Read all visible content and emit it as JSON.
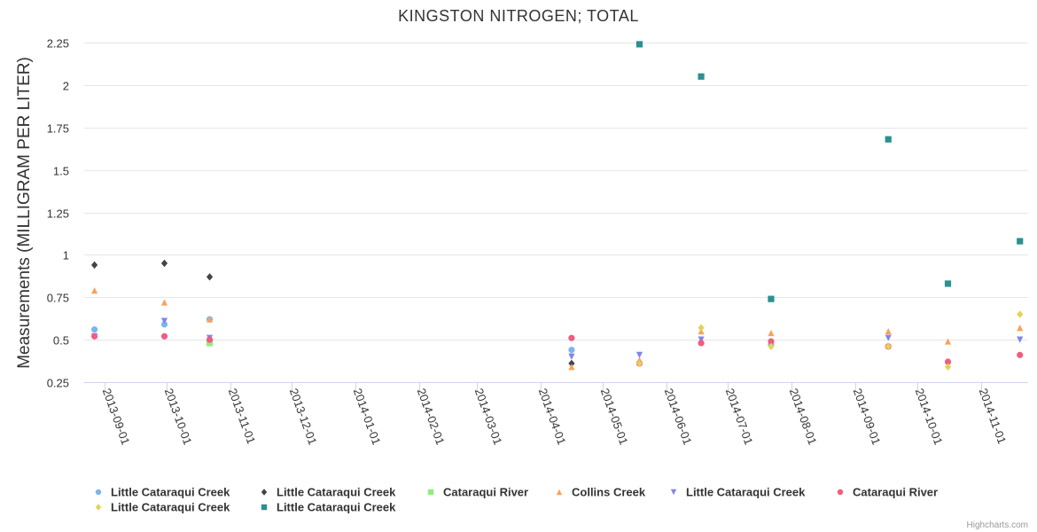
{
  "chart_data": {
    "type": "scatter",
    "title": "KINGSTON NITROGEN; TOTAL",
    "ylabel": "Measurements (MILLIGRAM PER LITER)",
    "xlabel": "",
    "ylim": [
      0.25,
      2.25
    ],
    "y_ticks": [
      "0.25",
      "0.5",
      "0.75",
      "1",
      "1.25",
      "1.5",
      "1.75",
      "2",
      "2.25"
    ],
    "y_tick_values": [
      0.25,
      0.5,
      0.75,
      1,
      1.25,
      1.5,
      1.75,
      2,
      2.25
    ],
    "x_range": [
      "2013-08-22",
      "2014-11-24"
    ],
    "x_ticks": [
      "2013-09-01",
      "2013-10-01",
      "2013-11-01",
      "2013-12-01",
      "2014-01-01",
      "2014-02-01",
      "2014-03-01",
      "2014-04-01",
      "2014-05-01",
      "2014-06-01",
      "2014-07-01",
      "2014-08-01",
      "2014-09-01",
      "2014-10-01",
      "2014-11-01"
    ],
    "grid": true,
    "legend_position": "bottom",
    "series": [
      {
        "name": "Little Cataraqui Creek",
        "color": "#7cb5ec",
        "marker": "circle",
        "points": [
          [
            "2013-08-27",
            0.56
          ],
          [
            "2013-09-30",
            0.59
          ],
          [
            "2013-10-22",
            0.62
          ],
          [
            "2014-04-16",
            0.44
          ],
          [
            "2014-07-22",
            0.47
          ],
          [
            "2014-09-17",
            0.46
          ]
        ]
      },
      {
        "name": "Little Cataraqui Creek",
        "color": "#434348",
        "marker": "diamond",
        "points": [
          [
            "2013-08-27",
            0.94
          ],
          [
            "2013-09-30",
            0.95
          ],
          [
            "2013-10-22",
            0.87
          ],
          [
            "2014-04-16",
            0.36
          ]
        ]
      },
      {
        "name": "Cataraqui River",
        "color": "#90ed7d",
        "marker": "square",
        "points": [
          [
            "2013-10-22",
            0.48
          ]
        ]
      },
      {
        "name": "Collins Creek",
        "color": "#f7a35c",
        "marker": "triangle",
        "points": [
          [
            "2013-08-27",
            0.79
          ],
          [
            "2013-09-30",
            0.72
          ],
          [
            "2013-10-22",
            0.62
          ],
          [
            "2014-04-16",
            0.34
          ],
          [
            "2014-05-19",
            0.38
          ],
          [
            "2014-06-18",
            0.55
          ],
          [
            "2014-07-22",
            0.54
          ],
          [
            "2014-09-17",
            0.55
          ],
          [
            "2014-10-16",
            0.49
          ],
          [
            "2014-11-20",
            0.57
          ]
        ]
      },
      {
        "name": "Little Cataraqui Creek",
        "color": "#8085e9",
        "marker": "triangle-down",
        "points": [
          [
            "2013-08-27",
            0.52
          ],
          [
            "2013-09-30",
            0.61
          ],
          [
            "2013-10-22",
            0.51
          ],
          [
            "2014-04-16",
            0.4
          ],
          [
            "2014-05-19",
            0.41
          ],
          [
            "2014-06-18",
            0.5
          ],
          [
            "2014-09-17",
            0.51
          ],
          [
            "2014-11-20",
            0.5
          ]
        ]
      },
      {
        "name": "Cataraqui River",
        "color": "#f15c80",
        "marker": "circle",
        "points": [
          [
            "2013-08-27",
            0.52
          ],
          [
            "2013-09-30",
            0.52
          ],
          [
            "2013-10-22",
            0.5
          ],
          [
            "2014-04-16",
            0.51
          ],
          [
            "2014-05-19",
            0.36
          ],
          [
            "2014-06-18",
            0.48
          ],
          [
            "2014-07-22",
            0.49
          ],
          [
            "2014-09-17",
            0.46
          ],
          [
            "2014-10-16",
            0.37
          ],
          [
            "2014-11-20",
            0.41
          ]
        ]
      },
      {
        "name": "Little Cataraqui Creek",
        "color": "#e4d354",
        "marker": "diamond",
        "points": [
          [
            "2014-05-19",
            0.36
          ],
          [
            "2014-06-18",
            0.57
          ],
          [
            "2014-07-22",
            0.46
          ],
          [
            "2014-09-17",
            0.46
          ],
          [
            "2014-10-16",
            0.34
          ],
          [
            "2014-11-20",
            0.65
          ]
        ]
      },
      {
        "name": "Little Cataraqui Creek",
        "color": "#2b908f",
        "marker": "square",
        "points": [
          [
            "2014-05-19",
            2.24
          ],
          [
            "2014-06-18",
            2.05
          ],
          [
            "2014-07-22",
            0.74
          ],
          [
            "2014-09-17",
            1.68
          ],
          [
            "2014-10-16",
            0.83
          ],
          [
            "2014-11-20",
            1.08
          ]
        ]
      }
    ]
  },
  "credit": "Highcharts.com"
}
